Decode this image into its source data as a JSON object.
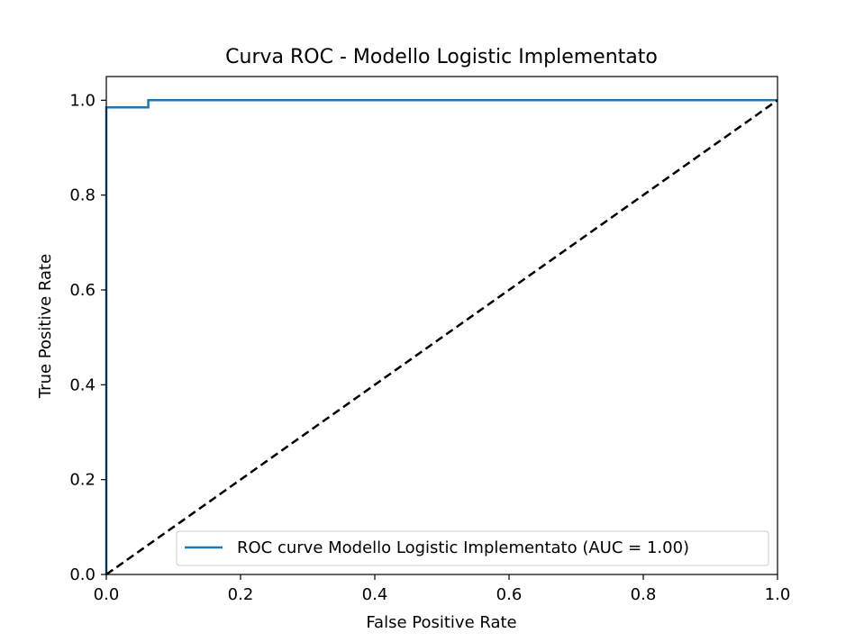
{
  "chart_data": {
    "type": "line",
    "title": "Curva ROC - Modello Logistic Implementato",
    "xlabel": "False Positive Rate",
    "ylabel": "True Positive Rate",
    "xlim": [
      0.0,
      1.0
    ],
    "ylim": [
      0.0,
      1.05
    ],
    "x_ticks": [
      0.0,
      0.2,
      0.4,
      0.6,
      0.8,
      1.0
    ],
    "x_tick_labels": [
      "0.0",
      "0.2",
      "0.4",
      "0.6",
      "0.8",
      "1.0"
    ],
    "y_ticks": [
      0.0,
      0.2,
      0.4,
      0.6,
      0.8,
      1.0
    ],
    "y_tick_labels": [
      "0.0",
      "0.2",
      "0.4",
      "0.6",
      "0.8",
      "1.0"
    ],
    "grid": false,
    "legend_position": "lower-right",
    "series": [
      {
        "name": "ROC curve Modello Logistic Implementato (AUC = 1.00)",
        "color": "#1f77b4",
        "style": "solid",
        "x": [
          0.0,
          0.0,
          0.0625,
          0.0625,
          1.0
        ],
        "y": [
          0.0,
          0.985,
          0.985,
          1.0,
          1.0
        ]
      },
      {
        "color": "#000000",
        "style": "dashed",
        "x": [
          0.0,
          1.0
        ],
        "y": [
          0.0,
          1.0
        ]
      }
    ]
  }
}
